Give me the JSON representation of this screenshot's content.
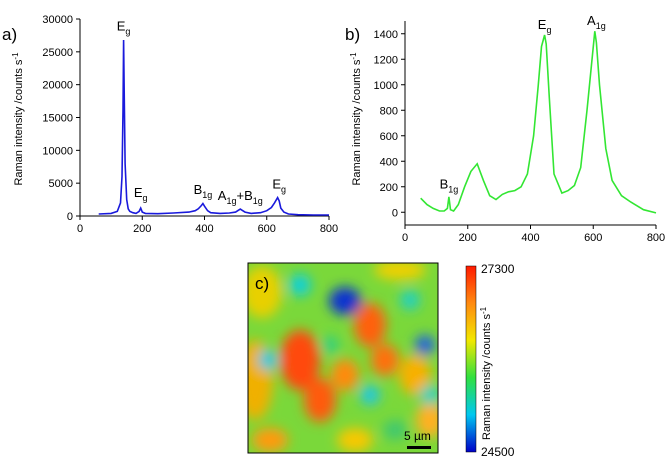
{
  "ylabel": "Raman intensity /counts s",
  "ylabel_sup": "-1",
  "chart_data": [
    {
      "panel": "a)",
      "type": "line",
      "color": "#1a1adc",
      "xlim": [
        0,
        800
      ],
      "ylim": [
        0,
        30000
      ],
      "xticks": [
        0,
        200,
        400,
        600,
        800
      ],
      "yticks": [
        0,
        5000,
        10000,
        15000,
        20000,
        25000,
        30000
      ],
      "x": [
        60,
        100,
        120,
        130,
        135,
        138,
        140,
        142,
        145,
        150,
        155,
        160,
        170,
        180,
        190,
        195,
        200,
        210,
        250,
        300,
        350,
        370,
        380,
        390,
        395,
        400,
        410,
        420,
        450,
        480,
        500,
        510,
        515,
        520,
        530,
        550,
        580,
        600,
        615,
        625,
        635,
        640,
        645,
        655,
        670,
        700,
        750,
        800
      ],
      "y": [
        300,
        400,
        700,
        2000,
        6000,
        16000,
        26800,
        19000,
        8000,
        2500,
        1100,
        700,
        500,
        400,
        700,
        1200,
        600,
        400,
        350,
        450,
        600,
        800,
        1100,
        1600,
        1900,
        1500,
        800,
        500,
        400,
        450,
        600,
        900,
        1050,
        900,
        600,
        400,
        500,
        800,
        1300,
        2000,
        2800,
        2300,
        1200,
        600,
        300,
        200,
        150,
        150
      ],
      "peaks": [
        {
          "label": "E",
          "sub": "g",
          "x": 140,
          "y": 27300
        },
        {
          "label": "E",
          "sub": "g",
          "x": 195,
          "y": 2000
        },
        {
          "label": "B",
          "sub": "1g",
          "x": 395,
          "y": 2400
        },
        {
          "label": "A",
          "sub": "1g",
          "x2": "B",
          "sub2": "1g",
          "x": 515,
          "y": 1500
        },
        {
          "label": "E",
          "sub": "g",
          "x": 640,
          "y": 3300
        }
      ]
    },
    {
      "panel": "b)",
      "type": "line",
      "color": "#33e633",
      "xlim": [
        0,
        800
      ],
      "ylim": [
        -100,
        1500
      ],
      "xticks": [
        0,
        200,
        400,
        600,
        800
      ],
      "yticks": [
        0,
        200,
        400,
        600,
        800,
        1000,
        1200,
        1400
      ],
      "x": [
        50,
        70,
        90,
        110,
        125,
        135,
        140,
        145,
        155,
        170,
        190,
        210,
        230,
        250,
        270,
        290,
        310,
        330,
        350,
        370,
        390,
        410,
        425,
        435,
        445,
        450,
        460,
        475,
        500,
        520,
        540,
        560,
        580,
        600,
        605,
        610,
        620,
        640,
        660,
        690,
        720,
        760,
        800
      ],
      "y": [
        110,
        60,
        30,
        10,
        10,
        30,
        120,
        20,
        10,
        60,
        200,
        320,
        380,
        250,
        130,
        100,
        140,
        160,
        170,
        200,
        300,
        600,
        1000,
        1300,
        1390,
        1320,
        900,
        300,
        150,
        170,
        210,
        350,
        800,
        1300,
        1420,
        1330,
        1000,
        500,
        250,
        130,
        80,
        20,
        -5
      ],
      "peaks": [
        {
          "label": "B",
          "sub": "1g",
          "x": 140,
          "y": 140
        },
        {
          "label": "E",
          "sub": "g",
          "x": 445,
          "y": 1390
        },
        {
          "label": "A",
          "sub": "1g",
          "x": 610,
          "y": 1420
        }
      ]
    },
    {
      "panel": "c)",
      "type": "heatmap",
      "colorbar_max": "27300",
      "colorbar_min": "24500",
      "colorbar_label": "Raman intensity /counts s",
      "scalebar": "5 µm",
      "colors": [
        "#1a1adc",
        "#00d4f0",
        "#2bd64a",
        "#f2e600",
        "#ff8c1a",
        "#ff3300"
      ]
    }
  ]
}
